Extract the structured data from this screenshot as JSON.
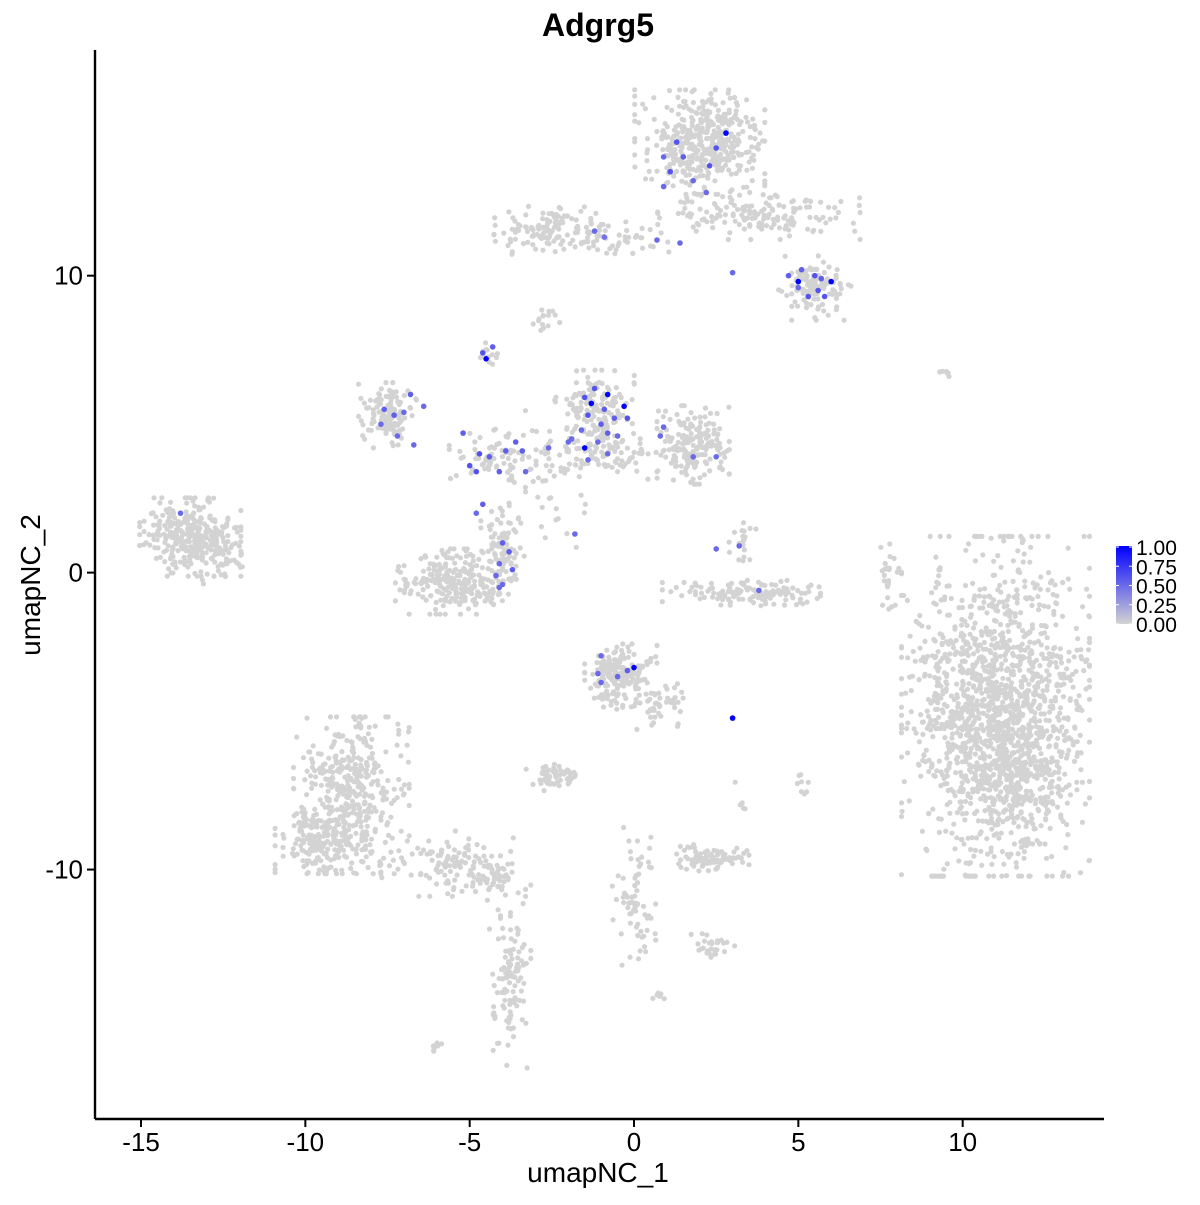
{
  "chart_data": {
    "type": "scatter",
    "title": "Adgrg5",
    "xlabel": "umapNC_1",
    "ylabel": "umapNC_2",
    "xlim": [
      -16.4,
      14.3
    ],
    "ylim": [
      -18.4,
      17.6
    ],
    "x_ticks": [
      -15,
      -10,
      -5,
      0,
      5,
      10
    ],
    "x_tick_labels": [
      "-15",
      "-10",
      "-5",
      "0",
      "5",
      "10"
    ],
    "y_ticks": [
      -10,
      0,
      10
    ],
    "y_tick_labels": [
      "-10",
      "0",
      "10"
    ],
    "grid": false,
    "legend": {
      "position": "right",
      "type": "colorbar",
      "min": 0.0,
      "max": 1.0,
      "tick_values": [
        1.0,
        0.75,
        0.5,
        0.25,
        0.0
      ],
      "tick_labels": [
        "1.00",
        "0.75",
        "0.50",
        "0.25",
        "0.00"
      ],
      "low_color": "#d3d3d3",
      "high_color": "#0000ff"
    },
    "clusters": [
      {
        "cx": 11.0,
        "cy": -4.5,
        "sx": 1.3,
        "sy": 2.6,
        "n": 1400,
        "seed": 11
      },
      {
        "cx": 11.5,
        "cy": -6.5,
        "sx": 0.9,
        "sy": 1.2,
        "n": 300,
        "seed": 12
      },
      {
        "cx": 2.0,
        "cy": 14.5,
        "sx": 0.9,
        "sy": 0.8,
        "n": 420,
        "seed": 13
      },
      {
        "cx": 3.8,
        "cy": 12.1,
        "sx": 1.4,
        "sy": 0.4,
        "n": 160,
        "seed": 14
      },
      {
        "cx": 5.5,
        "cy": 9.6,
        "sx": 0.5,
        "sy": 0.5,
        "n": 110,
        "seed": 15
      },
      {
        "cx": -2.5,
        "cy": 11.6,
        "sx": 0.8,
        "sy": 0.4,
        "n": 120,
        "seed": 16
      },
      {
        "cx": -0.7,
        "cy": 11.2,
        "sx": 0.8,
        "sy": 0.3,
        "n": 50,
        "seed": 17
      },
      {
        "cx": -7.5,
        "cy": 5.3,
        "sx": 0.4,
        "sy": 0.5,
        "n": 120,
        "seed": 18
      },
      {
        "cx": -1.2,
        "cy": 5.5,
        "sx": 0.55,
        "sy": 0.6,
        "n": 160,
        "seed": 19
      },
      {
        "cx": 1.8,
        "cy": 4.3,
        "sx": 0.5,
        "sy": 0.6,
        "n": 180,
        "seed": 20
      },
      {
        "cx": -1.0,
        "cy": 4.0,
        "sx": 1.0,
        "sy": 0.4,
        "n": 100,
        "seed": 21
      },
      {
        "cx": -4.3,
        "cy": 4.0,
        "sx": 0.6,
        "sy": 0.4,
        "n": 70,
        "seed": 22
      },
      {
        "cx": -2.8,
        "cy": 3.0,
        "sx": 0.6,
        "sy": 1.2,
        "n": 40,
        "seed": 23
      },
      {
        "cx": -5.5,
        "cy": -0.3,
        "sx": 0.8,
        "sy": 0.5,
        "n": 260,
        "seed": 24
      },
      {
        "cx": -4.0,
        "cy": 0.8,
        "sx": 0.3,
        "sy": 0.7,
        "n": 80,
        "seed": 25
      },
      {
        "cx": -13.5,
        "cy": 1.2,
        "sx": 0.7,
        "sy": 0.6,
        "n": 300,
        "seed": 26
      },
      {
        "cx": -12.5,
        "cy": 0.5,
        "sx": 0.4,
        "sy": 0.4,
        "n": 40,
        "seed": 27
      },
      {
        "cx": -0.4,
        "cy": -3.5,
        "sx": 0.5,
        "sy": 0.5,
        "n": 180,
        "seed": 28
      },
      {
        "cx": 0.8,
        "cy": -4.4,
        "sx": 0.4,
        "sy": 0.4,
        "n": 50,
        "seed": 29
      },
      {
        "cx": -8.6,
        "cy": -7.5,
        "sx": 0.8,
        "sy": 1.2,
        "n": 420,
        "seed": 30
      },
      {
        "cx": -9.6,
        "cy": -9.0,
        "sx": 0.6,
        "sy": 0.5,
        "n": 160,
        "seed": 31
      },
      {
        "cx": -5.5,
        "cy": -9.8,
        "sx": 1.0,
        "sy": 0.5,
        "n": 120,
        "seed": 32
      },
      {
        "cx": -4.3,
        "cy": -10.3,
        "sx": 0.3,
        "sy": 0.2,
        "n": 40,
        "seed": 33
      },
      {
        "cx": -3.8,
        "cy": -13.6,
        "sx": 0.3,
        "sy": 1.4,
        "n": 110,
        "seed": 34
      },
      {
        "cx": 3.5,
        "cy": -0.7,
        "sx": 1.2,
        "sy": 0.2,
        "n": 130,
        "seed": 35
      },
      {
        "cx": 3.3,
        "cy": 0.8,
        "sx": 0.2,
        "sy": 0.4,
        "n": 20,
        "seed": 36
      },
      {
        "cx": 2.4,
        "cy": -9.6,
        "sx": 0.5,
        "sy": 0.2,
        "n": 90,
        "seed": 37
      },
      {
        "cx": 2.4,
        "cy": -12.6,
        "sx": 0.3,
        "sy": 0.2,
        "n": 30,
        "seed": 38
      },
      {
        "cx": -2.4,
        "cy": -6.9,
        "sx": 0.4,
        "sy": 0.2,
        "n": 50,
        "seed": 39
      },
      {
        "cx": 0.0,
        "cy": -10.8,
        "sx": 0.3,
        "sy": 1.1,
        "n": 70,
        "seed": 40
      },
      {
        "cx": 7.8,
        "cy": -0.2,
        "sx": 0.15,
        "sy": 0.7,
        "n": 25,
        "seed": 41
      },
      {
        "cx": -2.7,
        "cy": 8.6,
        "sx": 0.2,
        "sy": 0.2,
        "n": 15,
        "seed": 42
      },
      {
        "cx": -4.5,
        "cy": 7.3,
        "sx": 0.2,
        "sy": 0.2,
        "n": 12,
        "seed": 43
      },
      {
        "cx": -6.0,
        "cy": -16.0,
        "sx": 0.1,
        "sy": 0.1,
        "n": 8,
        "seed": 44
      },
      {
        "cx": 0.7,
        "cy": -14.3,
        "sx": 0.1,
        "sy": 0.1,
        "n": 6,
        "seed": 45
      },
      {
        "cx": 5.1,
        "cy": -7.2,
        "sx": 0.1,
        "sy": 0.4,
        "n": 8,
        "seed": 46
      },
      {
        "cx": 3.3,
        "cy": -7.6,
        "sx": 0.1,
        "sy": 0.3,
        "n": 5,
        "seed": 47
      },
      {
        "cx": 9.5,
        "cy": 6.7,
        "sx": 0.2,
        "sy": 0.05,
        "n": 6,
        "seed": 48
      }
    ],
    "expressed_points": [
      {
        "x": 2.8,
        "y": 14.8,
        "v": 1.0
      },
      {
        "x": 2.5,
        "y": 14.3,
        "v": 0.6
      },
      {
        "x": 1.3,
        "y": 14.5,
        "v": 0.6
      },
      {
        "x": 0.9,
        "y": 14.0,
        "v": 0.5
      },
      {
        "x": 1.1,
        "y": 13.5,
        "v": 0.6
      },
      {
        "x": 1.8,
        "y": 13.2,
        "v": 0.5
      },
      {
        "x": 2.3,
        "y": 13.7,
        "v": 0.6
      },
      {
        "x": 0.9,
        "y": 13.0,
        "v": 0.5
      },
      {
        "x": 2.2,
        "y": 12.8,
        "v": 0.5
      },
      {
        "x": 1.5,
        "y": 14.0,
        "v": 0.55
      },
      {
        "x": 0.7,
        "y": 11.2,
        "v": 0.5
      },
      {
        "x": 1.4,
        "y": 11.1,
        "v": 0.5
      },
      {
        "x": -0.9,
        "y": 11.3,
        "v": 0.45
      },
      {
        "x": -1.2,
        "y": 11.5,
        "v": 0.5
      },
      {
        "x": 5.0,
        "y": 9.8,
        "v": 1.0
      },
      {
        "x": 6.0,
        "y": 9.8,
        "v": 1.0
      },
      {
        "x": 5.6,
        "y": 9.5,
        "v": 0.6
      },
      {
        "x": 5.3,
        "y": 9.3,
        "v": 0.6
      },
      {
        "x": 5.8,
        "y": 9.3,
        "v": 0.6
      },
      {
        "x": 5.1,
        "y": 10.2,
        "v": 0.55
      },
      {
        "x": 4.7,
        "y": 10.0,
        "v": 0.55
      },
      {
        "x": 5.5,
        "y": 10.0,
        "v": 0.6
      },
      {
        "x": 5.7,
        "y": 9.9,
        "v": 0.55
      },
      {
        "x": 5.0,
        "y": 9.6,
        "v": 0.5
      },
      {
        "x": 3.0,
        "y": 10.1,
        "v": 0.5
      },
      {
        "x": -4.5,
        "y": 7.2,
        "v": 1.0
      },
      {
        "x": -4.6,
        "y": 7.4,
        "v": 0.6
      },
      {
        "x": -4.3,
        "y": 7.6,
        "v": 0.55
      },
      {
        "x": -1.3,
        "y": 5.7,
        "v": 1.0
      },
      {
        "x": -0.8,
        "y": 6.0,
        "v": 1.0
      },
      {
        "x": -0.3,
        "y": 5.6,
        "v": 1.0
      },
      {
        "x": -1.5,
        "y": 4.2,
        "v": 1.0
      },
      {
        "x": -1.5,
        "y": 5.9,
        "v": 0.6
      },
      {
        "x": -1.2,
        "y": 6.2,
        "v": 0.6
      },
      {
        "x": -0.9,
        "y": 5.5,
        "v": 0.55
      },
      {
        "x": -1.4,
        "y": 5.3,
        "v": 0.6
      },
      {
        "x": -0.6,
        "y": 5.2,
        "v": 0.55
      },
      {
        "x": -0.2,
        "y": 5.2,
        "v": 0.6
      },
      {
        "x": -1.0,
        "y": 5.0,
        "v": 0.55
      },
      {
        "x": -1.6,
        "y": 4.8,
        "v": 0.5
      },
      {
        "x": -0.8,
        "y": 4.7,
        "v": 0.55
      },
      {
        "x": -1.9,
        "y": 4.5,
        "v": 0.5
      },
      {
        "x": -1.1,
        "y": 4.4,
        "v": 0.5
      },
      {
        "x": -0.5,
        "y": 4.6,
        "v": 0.5
      },
      {
        "x": -0.8,
        "y": 4.0,
        "v": 0.5
      },
      {
        "x": -1.4,
        "y": 3.8,
        "v": 0.5
      },
      {
        "x": 0.8,
        "y": 4.6,
        "v": 0.5
      },
      {
        "x": 1.8,
        "y": 3.9,
        "v": 0.5
      },
      {
        "x": -7.6,
        "y": 5.5,
        "v": 0.55
      },
      {
        "x": -7.3,
        "y": 5.3,
        "v": 0.55
      },
      {
        "x": -7.0,
        "y": 5.4,
        "v": 0.5
      },
      {
        "x": -7.7,
        "y": 5.0,
        "v": 0.5
      },
      {
        "x": -6.8,
        "y": 6.0,
        "v": 0.55
      },
      {
        "x": -6.4,
        "y": 5.6,
        "v": 0.5
      },
      {
        "x": -7.2,
        "y": 4.6,
        "v": 0.5
      },
      {
        "x": -6.7,
        "y": 4.3,
        "v": 0.5
      },
      {
        "x": -5.2,
        "y": 4.7,
        "v": 0.55
      },
      {
        "x": -4.7,
        "y": 4.0,
        "v": 0.6
      },
      {
        "x": -4.4,
        "y": 3.9,
        "v": 0.55
      },
      {
        "x": -3.9,
        "y": 4.1,
        "v": 0.55
      },
      {
        "x": -3.6,
        "y": 4.4,
        "v": 0.55
      },
      {
        "x": -3.4,
        "y": 4.1,
        "v": 0.55
      },
      {
        "x": -5.0,
        "y": 3.6,
        "v": 0.6
      },
      {
        "x": -4.8,
        "y": 3.4,
        "v": 0.6
      },
      {
        "x": -4.1,
        "y": 3.4,
        "v": 0.55
      },
      {
        "x": -2.0,
        "y": 4.4,
        "v": 0.5
      },
      {
        "x": -4.6,
        "y": 2.3,
        "v": 0.55
      },
      {
        "x": -4.8,
        "y": 2.0,
        "v": 0.5
      },
      {
        "x": -4.0,
        "y": 1.0,
        "v": 0.55
      },
      {
        "x": -3.8,
        "y": 0.7,
        "v": 0.55
      },
      {
        "x": -4.1,
        "y": 0.3,
        "v": 0.5
      },
      {
        "x": -3.7,
        "y": 0.1,
        "v": 0.55
      },
      {
        "x": -4.2,
        "y": -0.1,
        "v": 0.5
      },
      {
        "x": -4.0,
        "y": -0.4,
        "v": 0.5
      },
      {
        "x": -4.1,
        "y": -0.5,
        "v": 0.5
      },
      {
        "x": -1.8,
        "y": 1.3,
        "v": 0.5
      },
      {
        "x": -13.8,
        "y": 2.0,
        "v": 0.5
      },
      {
        "x": 2.5,
        "y": 3.9,
        "v": 0.5
      },
      {
        "x": 3.2,
        "y": 0.9,
        "v": 0.5
      },
      {
        "x": 2.5,
        "y": 0.8,
        "v": 0.5
      },
      {
        "x": 3.8,
        "y": -0.6,
        "v": 0.5
      },
      {
        "x": 0.0,
        "y": -3.2,
        "v": 1.0
      },
      {
        "x": 3.0,
        "y": -4.9,
        "v": 1.0
      },
      {
        "x": -0.2,
        "y": -3.3,
        "v": 0.55
      },
      {
        "x": -1.0,
        "y": -2.8,
        "v": 0.5
      },
      {
        "x": -1.1,
        "y": -3.4,
        "v": 0.5
      },
      {
        "x": -0.5,
        "y": -3.5,
        "v": 0.5
      },
      {
        "x": -1.0,
        "y": -3.7,
        "v": 0.5
      },
      {
        "x": 0.9,
        "y": 4.9,
        "v": 0.5
      },
      {
        "x": -2.6,
        "y": 4.2,
        "v": 0.5
      },
      {
        "x": -3.3,
        "y": 3.4,
        "v": 0.5
      }
    ]
  }
}
